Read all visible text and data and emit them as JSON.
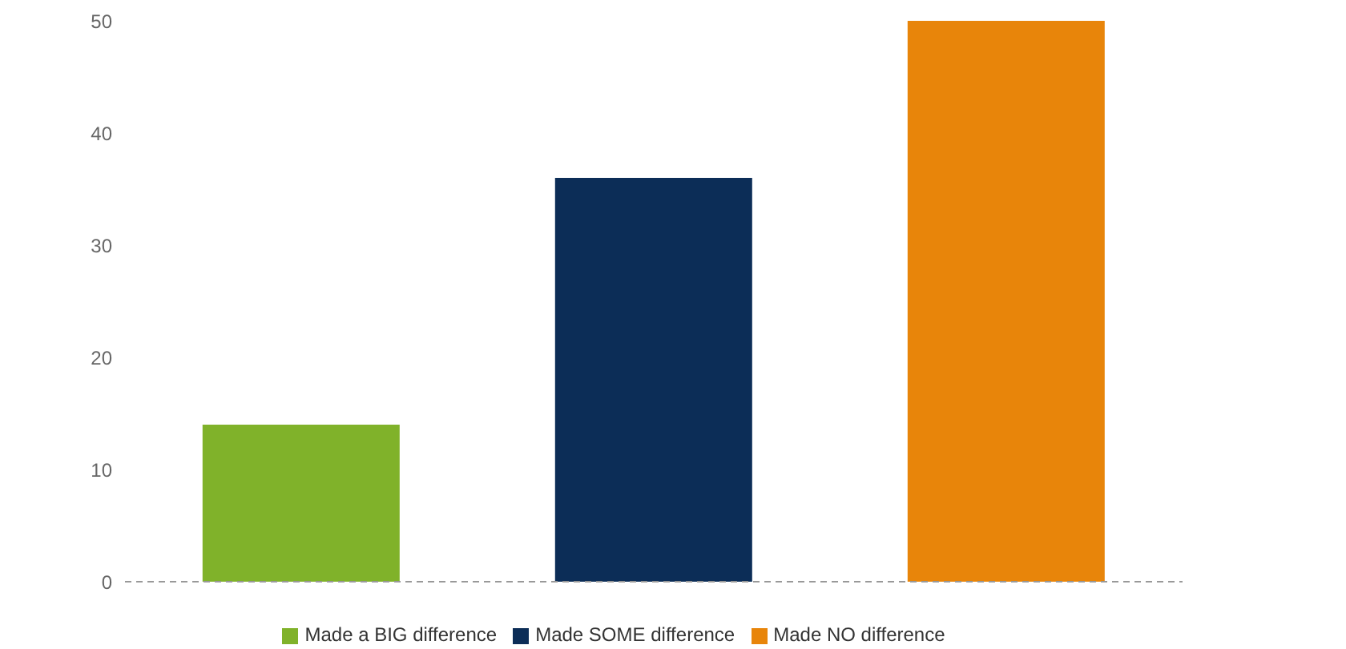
{
  "chart_data": {
    "type": "bar",
    "categories": [
      null,
      null,
      null
    ],
    "series": [
      {
        "name": "Made a BIG difference",
        "color": "#80b22a",
        "values": [
          14,
          null,
          null
        ]
      },
      {
        "name": "Made SOME difference",
        "color": "#0c2d57",
        "values": [
          null,
          36,
          null
        ]
      },
      {
        "name": "Made NO difference",
        "color": "#e8850a",
        "values": [
          null,
          null,
          50
        ]
      }
    ],
    "stacked": true,
    "ylim": [
      0,
      50
    ],
    "yticks": [
      0,
      10,
      20,
      30,
      40,
      50
    ],
    "legend": "bottom"
  }
}
